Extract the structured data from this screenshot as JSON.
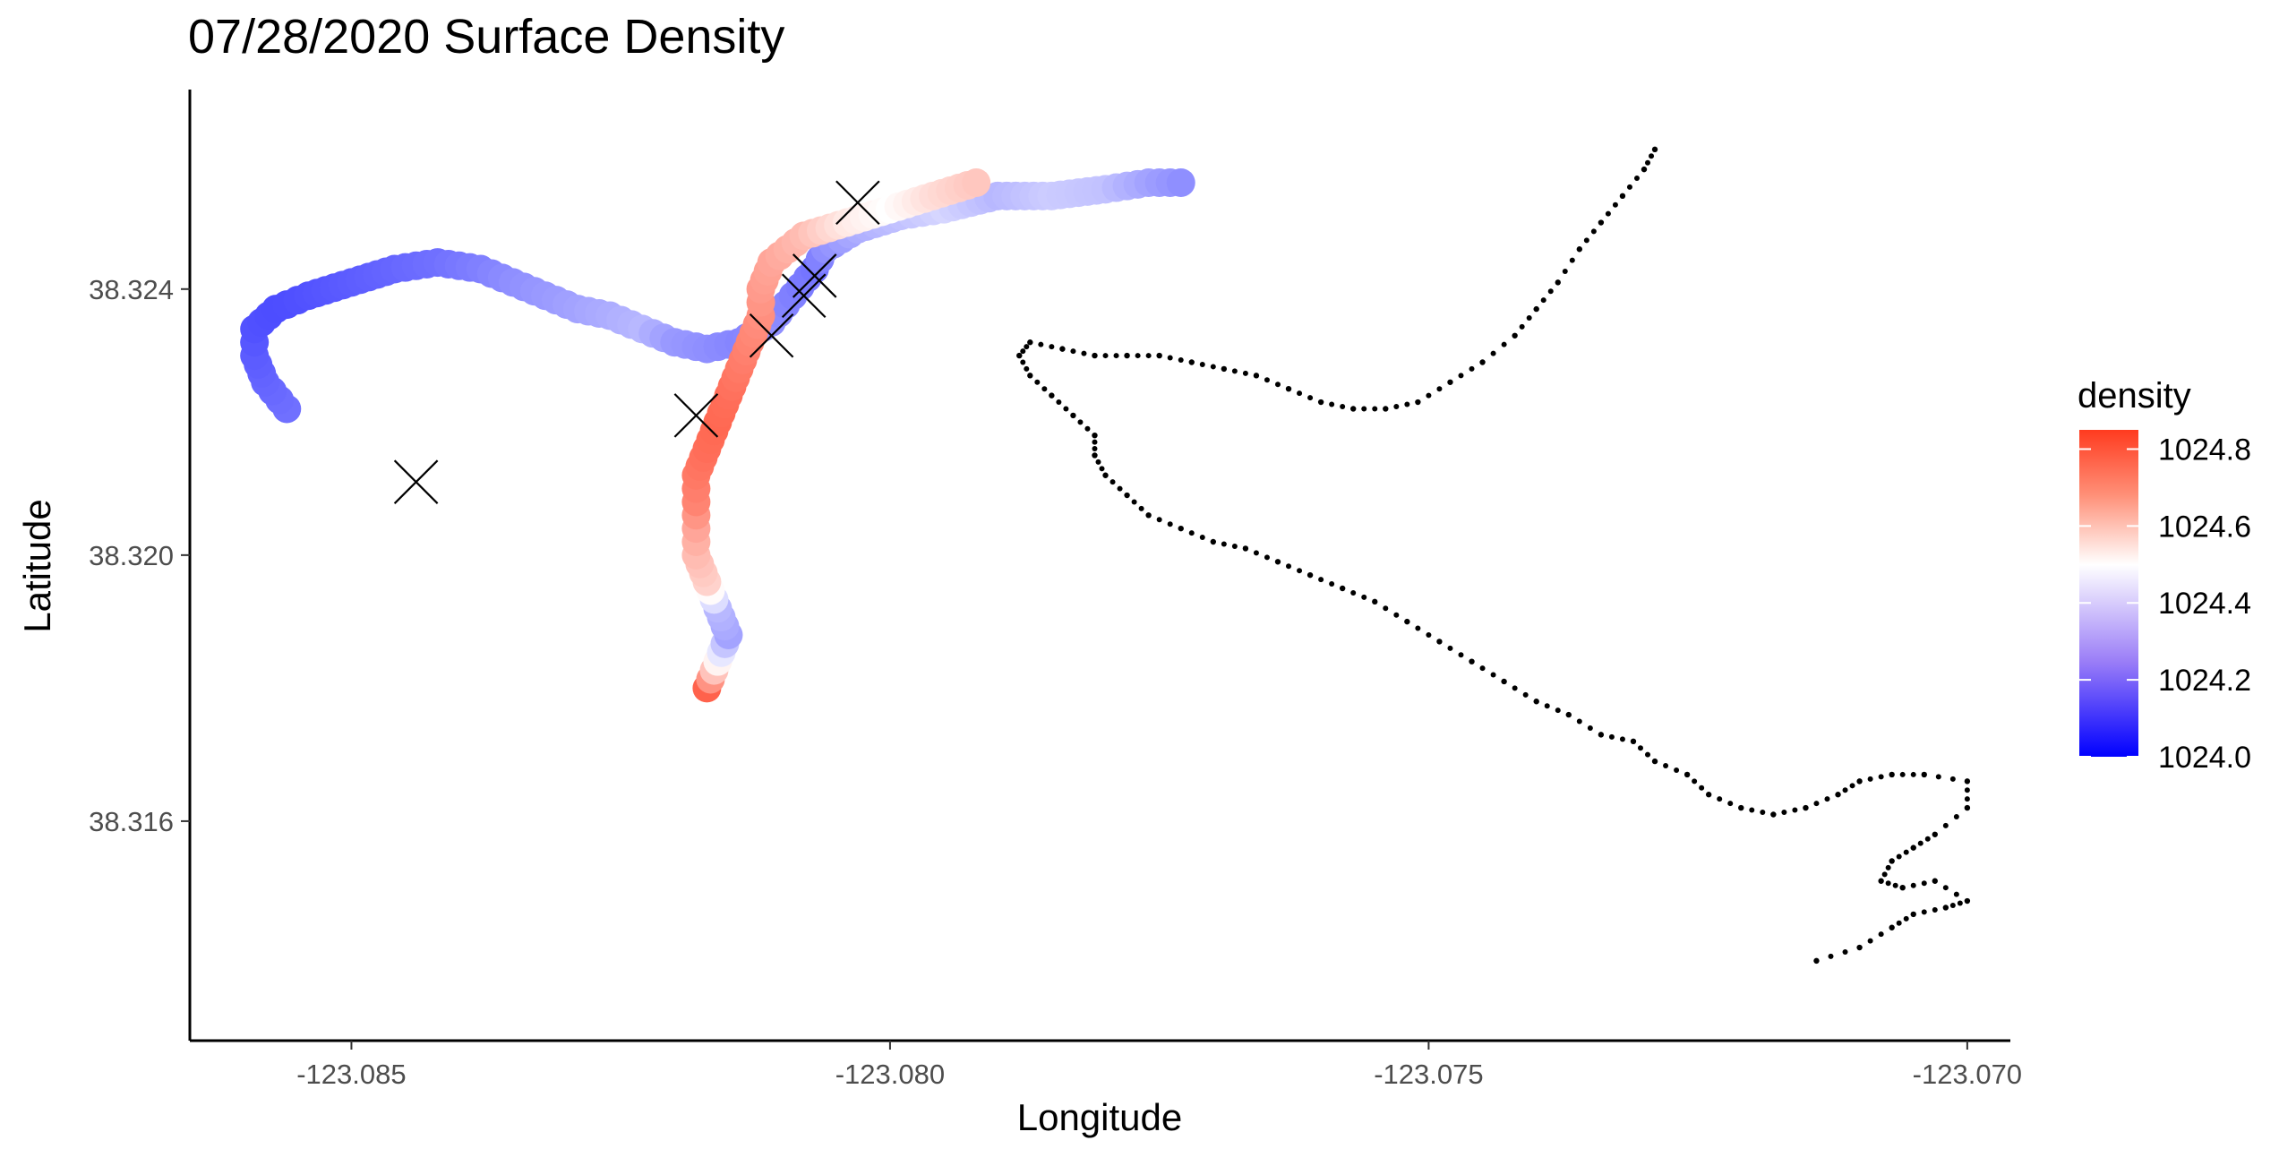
{
  "chart_data": {
    "type": "scatter",
    "title": "07/28/2020 Surface Density",
    "xlabel": "Longitude",
    "ylabel": "Latitude",
    "xlim": [
      -123.0865,
      -123.0696
    ],
    "ylim": [
      38.3127,
      38.327
    ],
    "x_ticks": [
      -123.085,
      -123.08,
      -123.075,
      -123.07
    ],
    "x_tick_labels": [
      "-123.085",
      "-123.080",
      "-123.075",
      "-123.070"
    ],
    "y_ticks": [
      38.316,
      38.32,
      38.324
    ],
    "y_tick_labels": [
      "38.316",
      "38.320",
      "38.324"
    ],
    "grid": false,
    "legend": {
      "title": "density",
      "placement": "right",
      "min": 1024.0,
      "max": 1024.85,
      "ticks": [
        1024.0,
        1024.2,
        1024.4,
        1024.6,
        1024.8
      ],
      "tick_labels": [
        "1024.0",
        "1024.2",
        "1024.4",
        "1024.6",
        "1024.8"
      ],
      "colors": {
        "low": "#0000ff",
        "mid": "#ffffff",
        "high": "#ff3b1f",
        "midpoint": 1024.5
      }
    },
    "density_track": [
      [
        -123.0856,
        38.3222,
        1024.22
      ],
      [
        -123.0858,
        38.3226,
        1024.2
      ],
      [
        -123.0859,
        38.323,
        1024.18
      ],
      [
        -123.0859,
        38.3234,
        1024.16
      ],
      [
        -123.0857,
        38.3237,
        1024.15
      ],
      [
        -123.0854,
        38.3239,
        1024.16
      ],
      [
        -123.085,
        38.3241,
        1024.18
      ],
      [
        -123.0846,
        38.3243,
        1024.2
      ],
      [
        -123.0842,
        38.3244,
        1024.22
      ],
      [
        -123.0838,
        38.3243,
        1024.25
      ],
      [
        -123.0835,
        38.3241,
        1024.28
      ],
      [
        -123.0832,
        38.3239,
        1024.3
      ],
      [
        -123.0829,
        38.3237,
        1024.32
      ],
      [
        -123.0826,
        38.3236,
        1024.34
      ],
      [
        -123.0823,
        38.3234,
        1024.36
      ],
      [
        -123.082,
        38.3232,
        1024.3
      ],
      [
        -123.0817,
        38.3231,
        1024.28
      ],
      [
        -123.0814,
        38.3232,
        1024.26
      ],
      [
        -123.0811,
        38.3235,
        1024.28
      ],
      [
        -123.0809,
        38.3239,
        1024.25
      ],
      [
        -123.0807,
        38.3243,
        1024.23
      ],
      [
        -123.0806,
        38.3246,
        1024.28
      ],
      [
        -123.0803,
        38.3249,
        1024.34
      ],
      [
        -123.0799,
        38.3251,
        1024.38
      ],
      [
        -123.0795,
        38.3252,
        1024.42
      ],
      [
        -123.079,
        38.3254,
        1024.36
      ],
      [
        -123.0785,
        38.3254,
        1024.4
      ],
      [
        -123.078,
        38.3255,
        1024.38
      ],
      [
        -123.0776,
        38.3256,
        1024.32
      ],
      [
        -123.0773,
        38.3256,
        1024.28
      ],
      [
        -123.0817,
        38.318,
        1024.78
      ],
      [
        -123.0816,
        38.3184,
        1024.52
      ],
      [
        -123.0815,
        38.3188,
        1024.32
      ],
      [
        -123.0816,
        38.3192,
        1024.36
      ],
      [
        -123.0817,
        38.3196,
        1024.58
      ],
      [
        -123.0818,
        38.32,
        1024.62
      ],
      [
        -123.0818,
        38.3204,
        1024.66
      ],
      [
        -123.0818,
        38.3208,
        1024.72
      ],
      [
        -123.0818,
        38.3212,
        1024.74
      ],
      [
        -123.0817,
        38.3216,
        1024.76
      ],
      [
        -123.0816,
        38.322,
        1024.77
      ],
      [
        -123.0815,
        38.3224,
        1024.76
      ],
      [
        -123.0814,
        38.3228,
        1024.74
      ],
      [
        -123.0813,
        38.3232,
        1024.72
      ],
      [
        -123.0812,
        38.3236,
        1024.7
      ],
      [
        -123.0812,
        38.324,
        1024.68
      ],
      [
        -123.0811,
        38.3244,
        1024.66
      ],
      [
        -123.0808,
        38.3248,
        1024.62
      ],
      [
        -123.0804,
        38.325,
        1024.54
      ],
      [
        -123.08,
        38.3252,
        1024.5
      ],
      [
        -123.0796,
        38.3254,
        1024.56
      ],
      [
        -123.0792,
        38.3256,
        1024.6
      ]
    ],
    "x_markers": [
      [
        -123.0844,
        38.3211
      ],
      [
        -123.0818,
        38.3221
      ],
      [
        -123.0811,
        38.3233
      ],
      [
        -123.0808,
        38.3239
      ],
      [
        -123.0807,
        38.3242
      ],
      [
        -123.0803,
        38.3253
      ]
    ],
    "coast_points": [
      [
        -123.0714,
        38.3139
      ],
      [
        -123.071,
        38.3141
      ],
      [
        -123.0707,
        38.3144
      ],
      [
        -123.0705,
        38.3146
      ],
      [
        -123.0702,
        38.3147
      ],
      [
        -123.07,
        38.3148
      ],
      [
        -123.0703,
        38.3151
      ],
      [
        -123.0706,
        38.315
      ],
      [
        -123.0708,
        38.3151
      ],
      [
        -123.0707,
        38.3154
      ],
      [
        -123.0705,
        38.3156
      ],
      [
        -123.0703,
        38.3158
      ],
      [
        -123.07,
        38.3162
      ],
      [
        -123.07,
        38.3166
      ],
      [
        -123.0704,
        38.3167
      ],
      [
        -123.0707,
        38.3167
      ],
      [
        -123.071,
        38.3166
      ],
      [
        -123.0712,
        38.3164
      ],
      [
        -123.0715,
        38.3162
      ],
      [
        -123.0718,
        38.3161
      ],
      [
        -123.0721,
        38.3162
      ],
      [
        -123.0724,
        38.3164
      ],
      [
        -123.0726,
        38.3167
      ],
      [
        -123.0729,
        38.3169
      ],
      [
        -123.0731,
        38.3172
      ],
      [
        -123.0734,
        38.3173
      ],
      [
        -123.0737,
        38.3176
      ],
      [
        -123.074,
        38.3178
      ],
      [
        -123.0743,
        38.3181
      ],
      [
        -123.0746,
        38.3184
      ],
      [
        -123.0749,
        38.3187
      ],
      [
        -123.0752,
        38.319
      ],
      [
        -123.0755,
        38.3193
      ],
      [
        -123.0758,
        38.3195
      ],
      [
        -123.0761,
        38.3197
      ],
      [
        -123.0764,
        38.3199
      ],
      [
        -123.0767,
        38.3201
      ],
      [
        -123.077,
        38.3202
      ],
      [
        -123.0773,
        38.3204
      ],
      [
        -123.0776,
        38.3206
      ],
      [
        -123.0778,
        38.3209
      ],
      [
        -123.078,
        38.3212
      ],
      [
        -123.0781,
        38.3215
      ],
      [
        -123.0781,
        38.3218
      ],
      [
        -123.0783,
        38.3221
      ],
      [
        -123.0785,
        38.3224
      ],
      [
        -123.0787,
        38.3227
      ],
      [
        -123.0788,
        38.323
      ],
      [
        -123.0787,
        38.3232
      ],
      [
        -123.0784,
        38.3231
      ],
      [
        -123.0781,
        38.323
      ],
      [
        -123.0778,
        38.323
      ],
      [
        -123.0775,
        38.323
      ],
      [
        -123.0772,
        38.3229
      ],
      [
        -123.0769,
        38.3228
      ],
      [
        -123.0766,
        38.3227
      ],
      [
        -123.0763,
        38.3225
      ],
      [
        -123.076,
        38.3223
      ],
      [
        -123.0757,
        38.3222
      ],
      [
        -123.0754,
        38.3222
      ],
      [
        -123.0751,
        38.3223
      ],
      [
        -123.0748,
        38.3226
      ],
      [
        -123.0745,
        38.3229
      ],
      [
        -123.0742,
        38.3233
      ],
      [
        -123.074,
        38.3237
      ],
      [
        -123.0738,
        38.3241
      ],
      [
        -123.0736,
        38.3246
      ],
      [
        -123.0734,
        38.325
      ],
      [
        -123.0732,
        38.3254
      ],
      [
        -123.073,
        38.3258
      ],
      [
        -123.0729,
        38.3261
      ]
    ]
  }
}
